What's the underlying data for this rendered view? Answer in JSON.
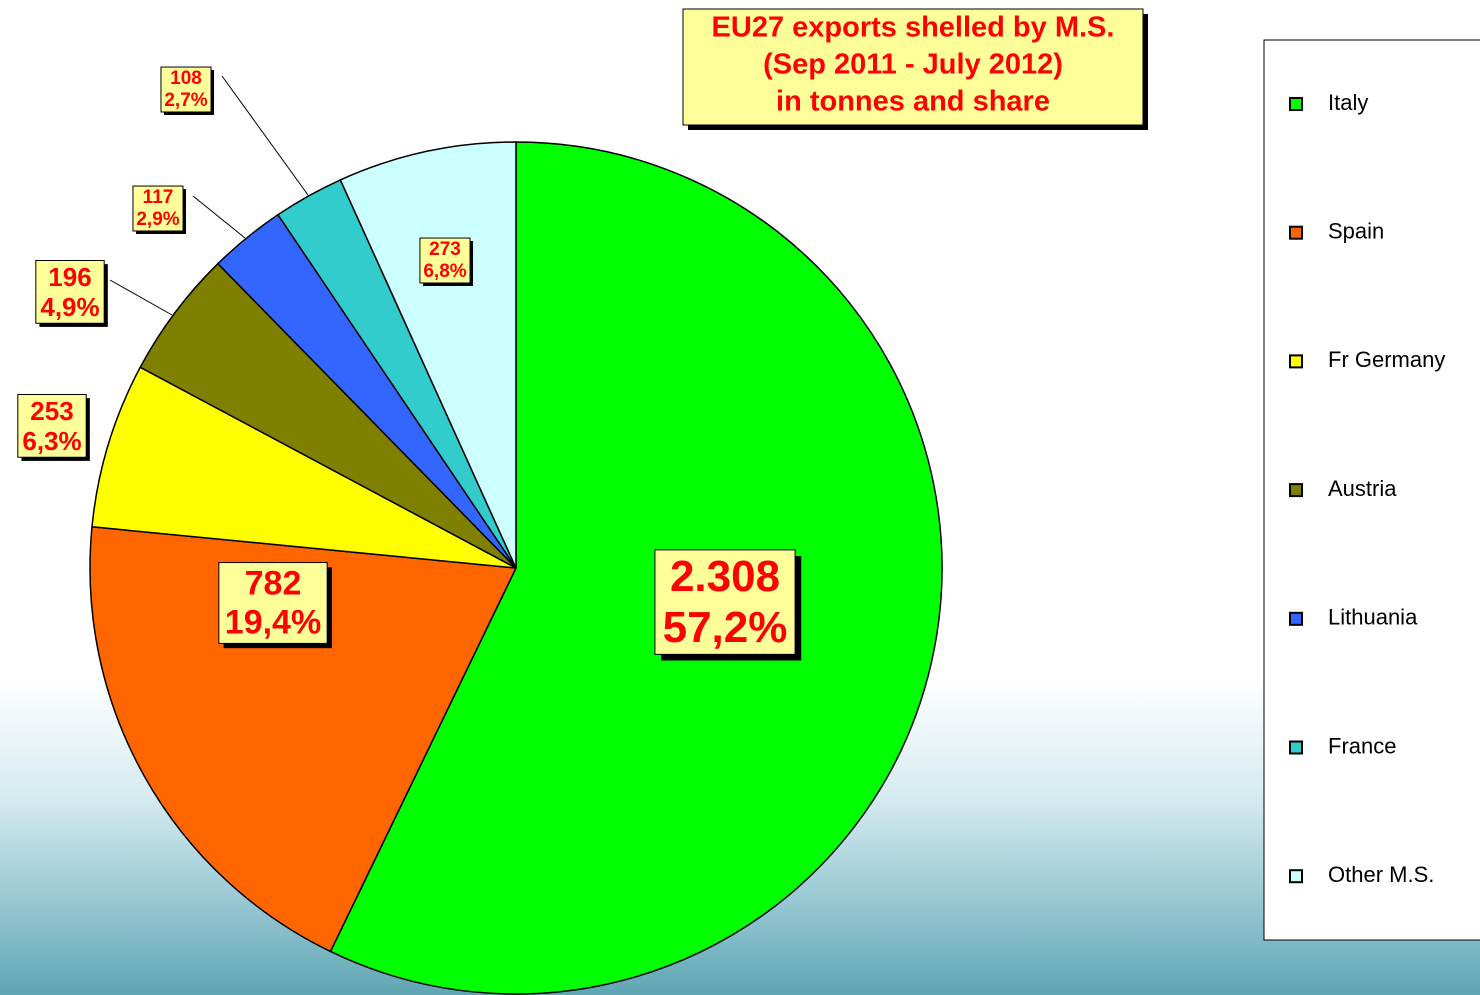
{
  "chart_data": {
    "type": "pie",
    "title": [
      "EU27 exports shelled by M.S.",
      "(Sep 2011 - July 2012)",
      "in tonnes and share"
    ],
    "categories": [
      "Italy",
      "Spain",
      "Fr Germany",
      "Austria",
      "Lithuania",
      "France",
      "Other M.S."
    ],
    "values": [
      2308,
      782,
      253,
      196,
      117,
      108,
      273
    ],
    "value_labels": [
      "2.308",
      "782",
      "253",
      "196",
      "117",
      "108",
      "273"
    ],
    "shares": [
      57.2,
      19.4,
      6.3,
      4.9,
      2.9,
      2.7,
      6.8
    ],
    "share_labels": [
      "57,2%",
      "19,4%",
      "6,3%",
      "4,9%",
      "2,9%",
      "2,7%",
      "6,8%"
    ],
    "colors": [
      "#00ff00",
      "#ff6600",
      "#ffff00",
      "#808000",
      "#3366ff",
      "#33cccc",
      "#ccffff"
    ],
    "legend": "right"
  }
}
